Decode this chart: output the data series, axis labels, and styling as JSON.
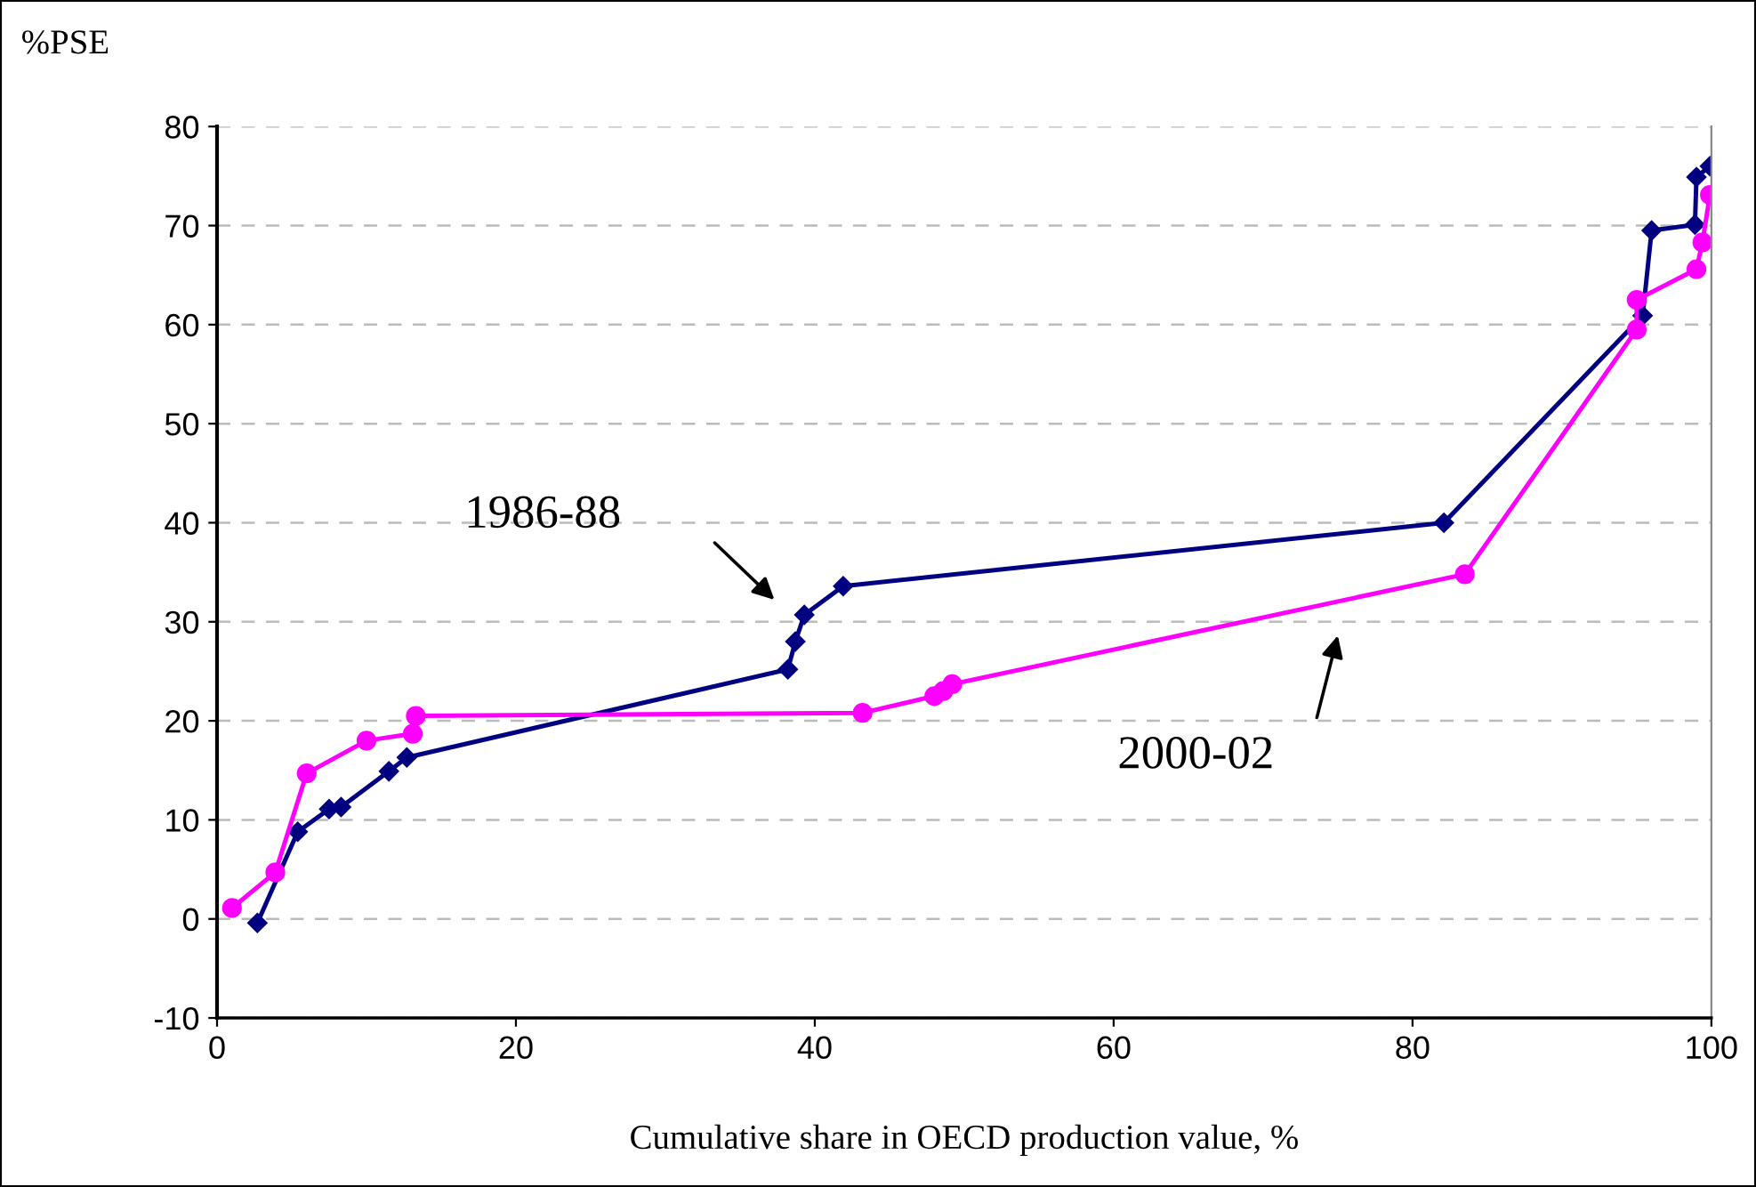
{
  "chart_data": {
    "type": "line",
    "ylabel": "%PSE",
    "xlabel": "Cumulative share in OECD production value, %",
    "xlim": [
      0,
      100
    ],
    "xticks": [
      0,
      20,
      40,
      60,
      80,
      100
    ],
    "ylim": [
      -10,
      80
    ],
    "yticks": [
      -10,
      0,
      10,
      20,
      30,
      40,
      50,
      60,
      70,
      80
    ],
    "grid": "y",
    "legend": false,
    "annotations": [
      "1986-88",
      "2000-02"
    ],
    "series": [
      {
        "color": "#000080",
        "marker": "diamond",
        "x": [
          2.7,
          5.4,
          7.5,
          8.3,
          11.5,
          12.7,
          38.2,
          38.7,
          39.3,
          41.9,
          82.1,
          95.4,
          96.0,
          98.9,
          99.0,
          99.9
        ],
        "values": [
          -0.4,
          8.8,
          11.1,
          11.3,
          14.9,
          16.3,
          25.2,
          28.0,
          30.7,
          33.6,
          40.0,
          60.9,
          69.5,
          70.1,
          74.9,
          76.0
        ]
      },
      {
        "color": "#ff00ff",
        "marker": "circle",
        "x": [
          1.0,
          3.9,
          6.0,
          10.0,
          13.1,
          13.3,
          43.2,
          48.0,
          48.6,
          49.2,
          83.5,
          95.0,
          95.0,
          99.0,
          99.4,
          99.9
        ],
        "values": [
          1.1,
          4.7,
          14.7,
          18.0,
          18.7,
          20.5,
          20.8,
          22.5,
          23.0,
          23.7,
          34.8,
          59.5,
          62.5,
          65.6,
          68.3,
          73.1
        ]
      }
    ]
  }
}
